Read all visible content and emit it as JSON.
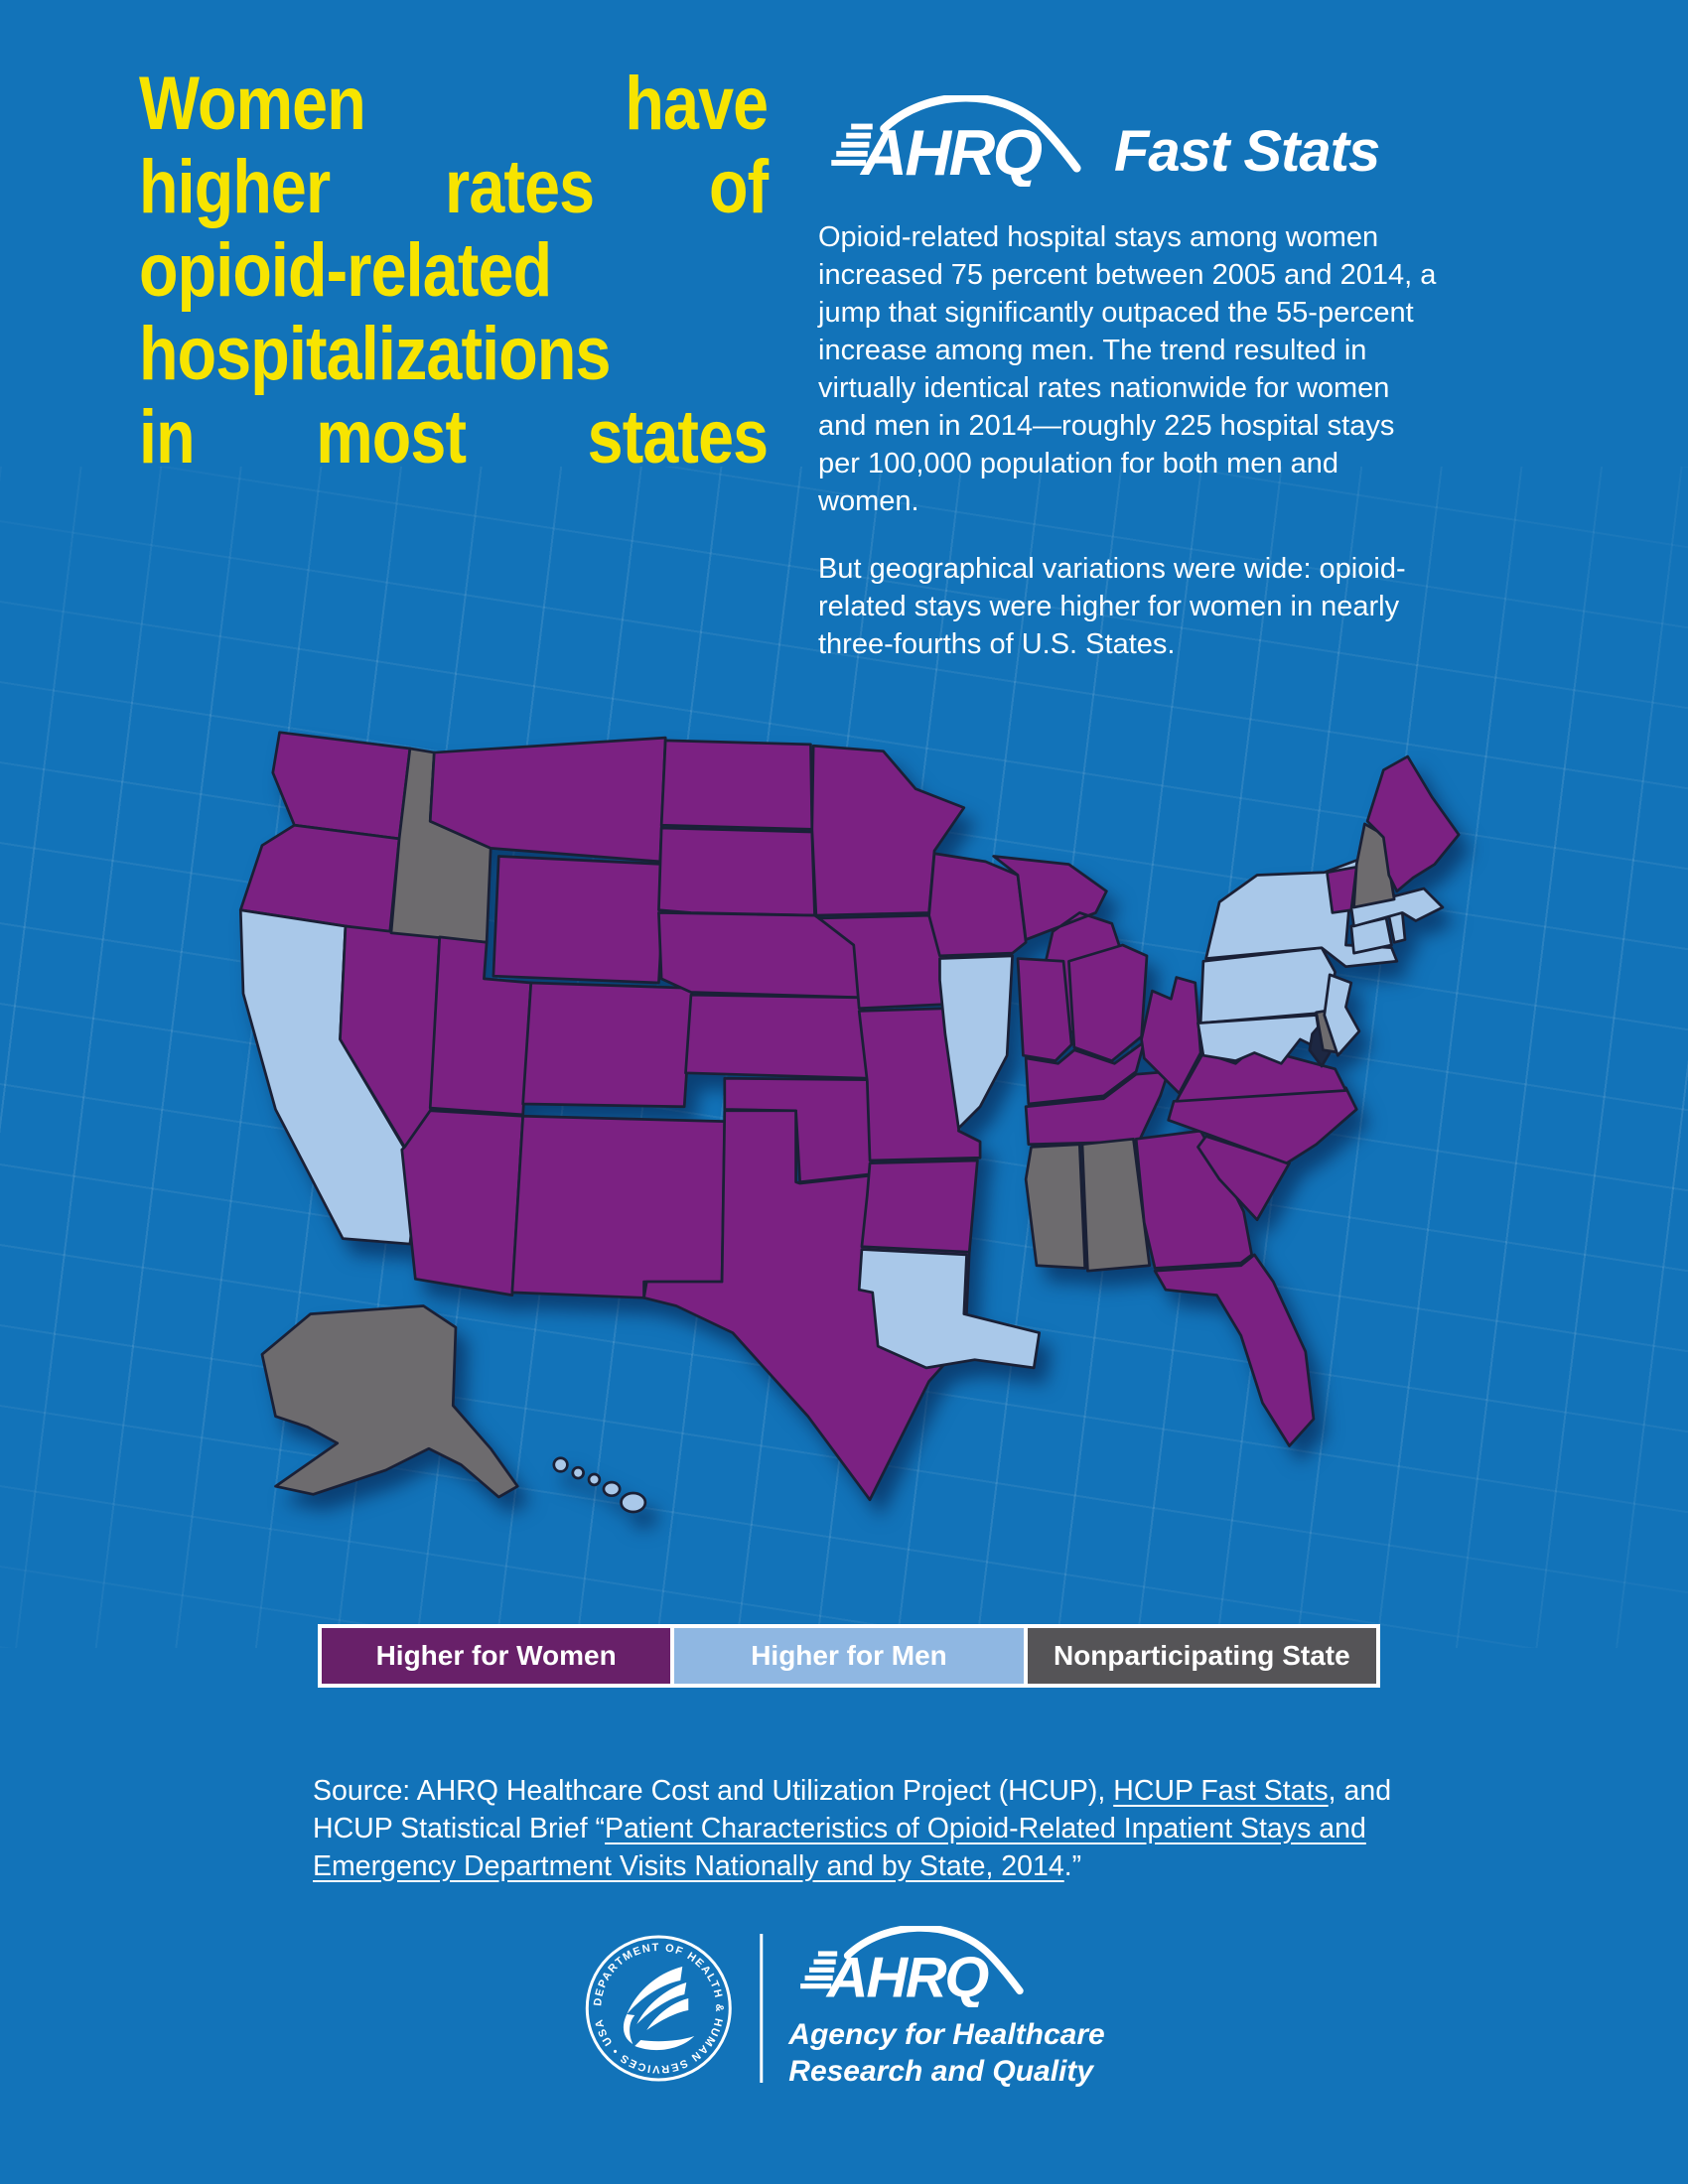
{
  "page": {
    "background": "#1273b9"
  },
  "headline": {
    "color": "#f7e400",
    "lines": [
      "Women have",
      "higher rates of",
      "opioid-related",
      "hospitalizations",
      "in most states"
    ]
  },
  "brand": {
    "name": "AHRQ",
    "product": "Fast Stats"
  },
  "intro": {
    "paragraph1": "Opioid-related hospital stays among women increased 75 percent between 2005 and 2014, a jump that significantly outpaced the 55-percent increase among men. The trend resulted in virtually identical rates nationwide for women and men in 2014—roughly 225 hospital stays per 100,000 population for both men and women.",
    "paragraph2": "But geographical variations were wide: opioid-related stays were higher for women in nearly three-fourths of U.S. States."
  },
  "legend": {
    "items": [
      {
        "id": "higher_women",
        "label": "Higher for Women",
        "color": "#682069",
        "map_color": "#7b2182"
      },
      {
        "id": "higher_men",
        "label": "Higher for Men",
        "color": "#8fb7e2",
        "map_color": "#a9c8e9"
      },
      {
        "id": "nonparticipating",
        "label": "Nonparticipating State",
        "color": "#555457",
        "map_color": "#6d6b6e"
      }
    ]
  },
  "map": {
    "stroke": "#1a2036",
    "water_accent": "#1d2742",
    "states": {
      "WA": "higher_women",
      "OR": "higher_women",
      "CA": "higher_men",
      "NV": "higher_women",
      "ID": "nonparticipating",
      "MT": "higher_women",
      "WY": "higher_women",
      "UT": "higher_women",
      "CO": "higher_women",
      "AZ": "higher_women",
      "NM": "higher_women",
      "ND": "higher_women",
      "SD": "higher_women",
      "NE": "higher_women",
      "KS": "higher_women",
      "OK": "higher_women",
      "TX": "higher_women",
      "MN": "higher_women",
      "IA": "higher_women",
      "MO": "higher_women",
      "AR": "higher_women",
      "LA": "higher_men",
      "WI": "higher_women",
      "IL": "higher_men",
      "MI": "higher_women",
      "IN": "higher_women",
      "OH": "higher_women",
      "KY": "higher_women",
      "TN": "higher_women",
      "MS": "nonparticipating",
      "AL": "nonparticipating",
      "GA": "higher_women",
      "FL": "higher_women",
      "SC": "higher_women",
      "NC": "higher_women",
      "VA": "higher_women",
      "WV": "higher_women",
      "MD": "higher_men",
      "DE": "nonparticipating",
      "PA": "higher_men",
      "NJ": "higher_men",
      "NY": "higher_men",
      "CT": "higher_men",
      "RI": "higher_men",
      "MA": "higher_men",
      "VT": "higher_women",
      "NH": "nonparticipating",
      "ME": "higher_women",
      "AK": "nonparticipating",
      "HI": "higher_men"
    }
  },
  "source": {
    "segments": [
      {
        "text": "Source: AHRQ Healthcare Cost and Utilization Project (HCUP), ",
        "link": false
      },
      {
        "text": "HCUP Fast Stats",
        "link": true
      },
      {
        "text": ", and HCUP Statistical Brief “",
        "link": false
      },
      {
        "text": "Patient Characteristics of Opioid-Related Inpatient Stays and Emergency Department Visits Nationally and by State, 2014",
        "link": true
      },
      {
        "text": ".”",
        "link": false
      }
    ]
  },
  "footer": {
    "seal_text": "DEPARTMENT OF HEALTH & HUMAN SERVICES • USA",
    "brand": "AHRQ",
    "agency_line1": "Agency for Healthcare",
    "agency_line2": "Research and Quality"
  }
}
